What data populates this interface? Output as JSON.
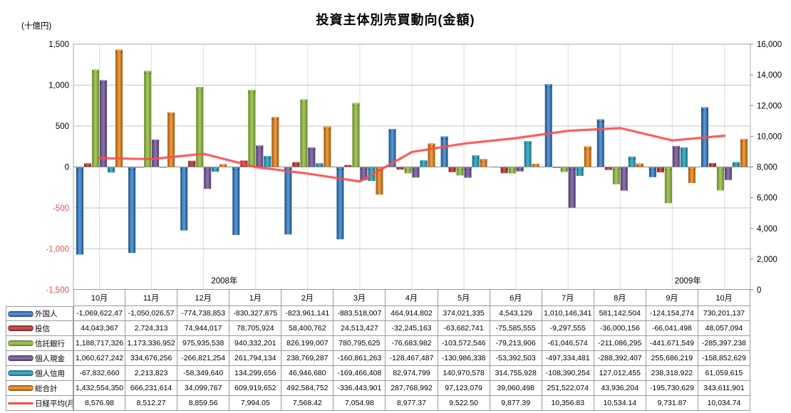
{
  "title": "投資主体別売買動向(金額)",
  "unit_label": "(十億円)",
  "chart_data": {
    "type": "bar+line",
    "categories": [
      "10月",
      "11月",
      "12月",
      "1月",
      "2月",
      "3月",
      "4月",
      "5月",
      "6月",
      "7月",
      "8月",
      "9月",
      "10月"
    ],
    "year_groups": [
      {
        "label": "2008年",
        "center_index": 2.9
      },
      {
        "label": "2009年",
        "center_index": 11.8
      }
    ],
    "left_axis": {
      "min": -1500,
      "max": 1500,
      "step": 500,
      "negative_color": "#f05050"
    },
    "right_axis": {
      "min": 0,
      "max": 16000,
      "step": 2000
    },
    "grid": {
      "horizontal": true,
      "vertical": true
    },
    "legend_position": "table-left-column",
    "bar_series": [
      {
        "name": "外国人",
        "color_light": "#5E9BD8",
        "color_dark": "#1C4F82",
        "values": [
          -1069.6,
          -1050.0,
          -774.7,
          -830.3,
          -824.0,
          -883.5,
          464.9,
          374.0,
          4.5,
          1010.1,
          581.1,
          -124.2,
          730.2
        ],
        "table_text": [
          "-1,069,622,47",
          "-1,050,026,57",
          "-774,738,853",
          "-830,327,875",
          "-823,961,141",
          "-883,518,007",
          "464,914,802",
          "374,021,335",
          "4,543,129",
          "1,010,146,341",
          "581,142,504",
          "-124,154,274",
          "730,201,137"
        ]
      },
      {
        "name": "投信",
        "color_light": "#D05550",
        "color_dark": "#7F2A27",
        "values": [
          44.0,
          2.7,
          74.9,
          78.7,
          58.4,
          24.5,
          -32.2,
          -63.7,
          -75.6,
          -9.3,
          -36.0,
          -66.0,
          48.1
        ],
        "table_text": [
          "44,043,367",
          "2,724,313",
          "74,944,017",
          "78,705,924",
          "58,400,762",
          "24,513,427",
          "-32,245,163",
          "-63,682,741",
          "-75,585,555",
          "-9,297,555",
          "-36,000,156",
          "-66,041,498",
          "48,057,094"
        ]
      },
      {
        "name": "信託銀行",
        "color_light": "#A8C95E",
        "color_dark": "#69882E",
        "values": [
          1188.7,
          1173.3,
          975.9,
          940.3,
          826.2,
          780.8,
          -76.7,
          -103.6,
          -79.2,
          -61.0,
          -211.1,
          -441.7,
          -285.4
        ],
        "table_text": [
          "1,188,717,326",
          "1,173,336,952",
          "975,935,538",
          "940,332,201",
          "826,199,007",
          "780,795,625",
          "-76,683,982",
          "-103,572,546",
          "-79,213,906",
          "-61,046,574",
          "-211,086,295",
          "-441,671,549",
          "-285,397,238"
        ]
      },
      {
        "name": "個人現金",
        "color_light": "#8E74B0",
        "color_dark": "#4F3D6B",
        "values": [
          1060.6,
          334.7,
          -266.8,
          261.8,
          238.8,
          -160.9,
          -128.5,
          -131.0,
          -53.4,
          -497.3,
          -288.4,
          255.7,
          -158.9
        ],
        "table_text": [
          "1,060,627,242",
          "334,676,256",
          "-266,821,254",
          "261,794,134",
          "238,769,287",
          "-160,861,263",
          "-128,467,487",
          "-130,986,338",
          "-53,392,503",
          "-497,334,481",
          "-288,392,407",
          "255,686,219",
          "-158,852,629"
        ]
      },
      {
        "name": "個人信用",
        "color_light": "#46B4CC",
        "color_dark": "#1F6E7E",
        "values": [
          -67.8,
          2.2,
          -58.3,
          134.3,
          46.9,
          -169.5,
          83.0,
          141.0,
          314.8,
          -108.4,
          127.0,
          238.3,
          61.1
        ],
        "table_text": [
          "-67,832,660",
          "2,213,823",
          "-58,349,640",
          "134,299,656",
          "46,946,680",
          "-169,466,408",
          "82,974,799",
          "140,970,578",
          "314,755,928",
          "-108,390,254",
          "127,012,455",
          "238,318,922",
          "61,059,615"
        ]
      },
      {
        "name": "総合計",
        "color_light": "#F79C42",
        "color_dark": "#995A0E",
        "values": [
          1432.6,
          666.2,
          34.1,
          609.9,
          492.6,
          -336.4,
          287.8,
          97.1,
          39.1,
          251.5,
          43.9,
          -195.7,
          343.6
        ],
        "table_text": [
          "1,432,554,350",
          "666,231,614",
          "34,099,767",
          "609,919,652",
          "492,584,752",
          "-336,443,901",
          "287,768,992",
          "97,123,079",
          "39,060,498",
          "251,522,074",
          "43,936,204",
          "-195,730,629",
          "343,611,901"
        ]
      }
    ],
    "line_series": {
      "name": "日経平均(月)",
      "color": "#FF4B4B",
      "values": [
        8576.98,
        8512.27,
        8859.56,
        7994.05,
        7568.42,
        7054.98,
        8977.37,
        9522.5,
        9877.39,
        10356.83,
        10534.14,
        9731.87,
        10034.74
      ],
      "table_text": [
        "8,576.98",
        "8,512.27",
        "8,859.56",
        "7,994.05",
        "7,568.42",
        "7,054.98",
        "8,977.37",
        "9,522.50",
        "9,877.39",
        "10,356.83",
        "10,534.14",
        "9,731.87",
        "10,034.74"
      ]
    }
  }
}
